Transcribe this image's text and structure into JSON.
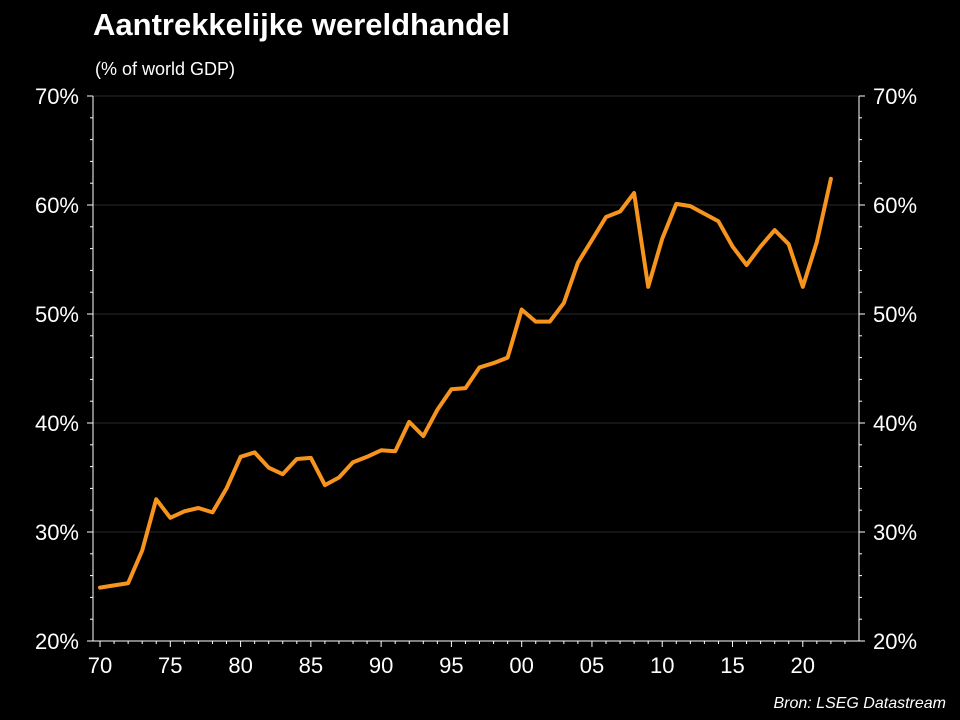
{
  "title": "Aantrekkelijke wereldhandel",
  "subtitle": "(% of world GDP)",
  "source": "Bron: LSEG Datastream",
  "colors": {
    "background": "#000000",
    "line": "#f7941d",
    "text": "#ffffff",
    "axis": "#ffffff",
    "grid": "#2a2a2a"
  },
  "chart_data": {
    "type": "line",
    "title": "Aantrekkelijke wereldhandel",
    "subtitle": "(% of world GDP)",
    "x_tick_labels": [
      "70",
      "75",
      "80",
      "85",
      "90",
      "95",
      "00",
      "05",
      "10",
      "15",
      "20"
    ],
    "x_ticks": [
      1970,
      1975,
      1980,
      1985,
      1990,
      1995,
      2000,
      2005,
      2010,
      2015,
      2020
    ],
    "y_tick_labels": [
      "20%",
      "30%",
      "40%",
      "50%",
      "60%",
      "70%"
    ],
    "y_ticks": [
      20,
      30,
      40,
      50,
      60,
      70
    ],
    "ylim": [
      20,
      70
    ],
    "xlim": [
      1969.5,
      2024
    ],
    "grid": true,
    "y_axis_both_sides": true,
    "series": [
      {
        "color": "#f7941d",
        "x": [
          1970,
          1971,
          1972,
          1973,
          1974,
          1975,
          1976,
          1977,
          1978,
          1979,
          1980,
          1981,
          1982,
          1983,
          1984,
          1985,
          1986,
          1987,
          1988,
          1989,
          1990,
          1991,
          1992,
          1993,
          1994,
          1995,
          1996,
          1997,
          1998,
          1999,
          2000,
          2001,
          2002,
          2003,
          2004,
          2005,
          2006,
          2007,
          2008,
          2009,
          2010,
          2011,
          2012,
          2013,
          2014,
          2015,
          2016,
          2017,
          2018,
          2019,
          2020,
          2021,
          2022
        ],
        "y": [
          24.9,
          25.1,
          25.3,
          28.3,
          33.0,
          31.3,
          31.9,
          32.2,
          31.8,
          34.0,
          36.9,
          37.3,
          35.9,
          35.3,
          36.7,
          36.8,
          34.3,
          35.0,
          36.4,
          36.9,
          37.5,
          37.4,
          40.1,
          38.8,
          41.2,
          43.1,
          43.2,
          45.1,
          45.5,
          46.0,
          50.4,
          49.3,
          49.3,
          51.0,
          54.7,
          56.8,
          58.9,
          59.4,
          61.1,
          52.5,
          56.9,
          60.1,
          59.9,
          59.2,
          58.5,
          56.2,
          54.5,
          56.2,
          57.7,
          56.4,
          52.5,
          56.6,
          62.4
        ]
      }
    ]
  }
}
